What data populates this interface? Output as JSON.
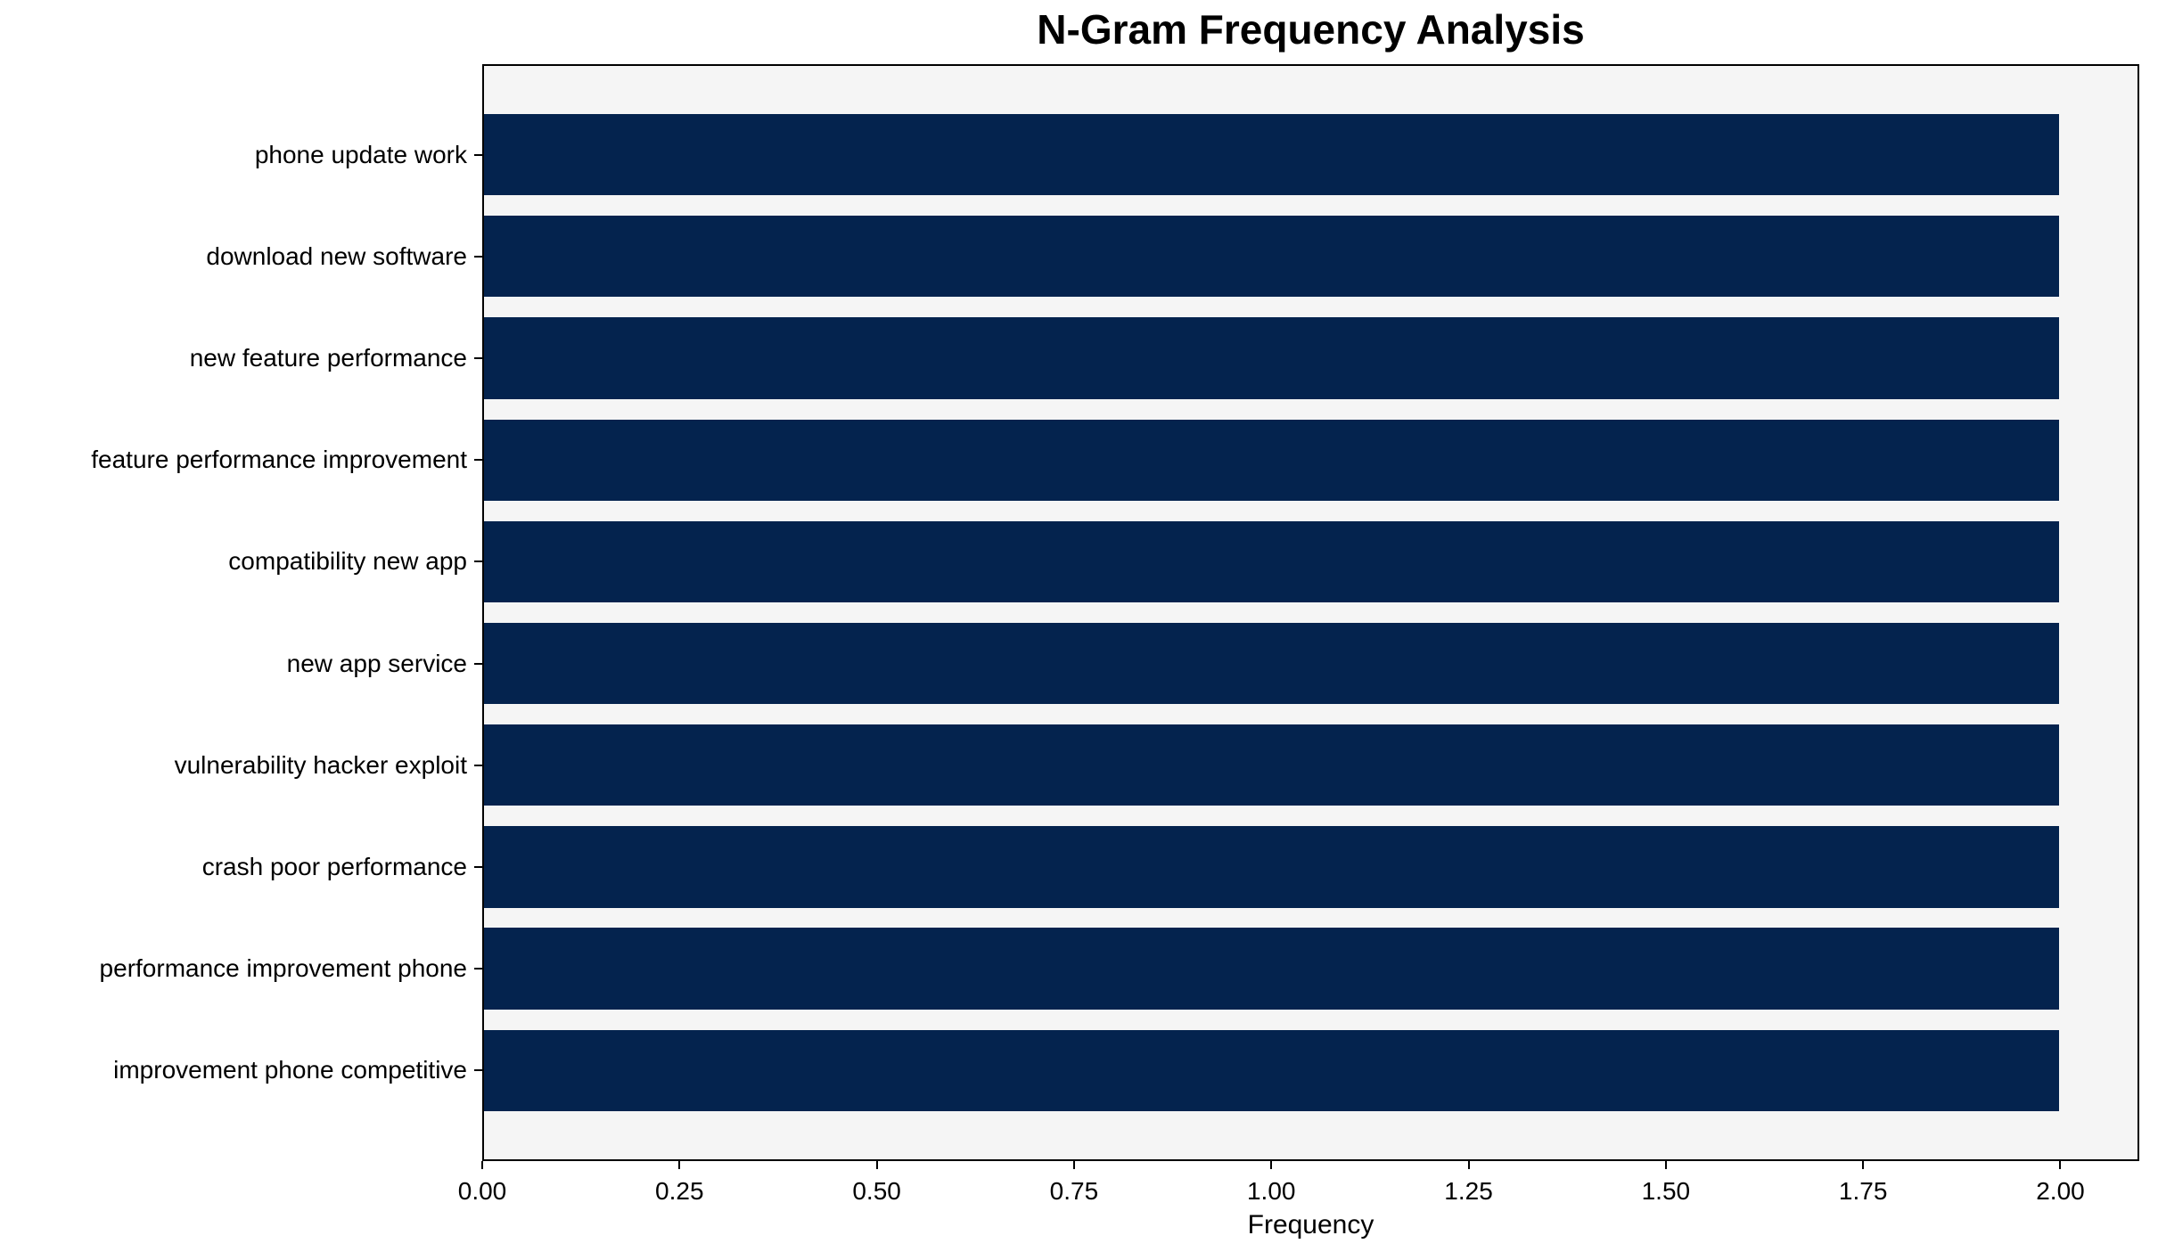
{
  "chart_data": {
    "type": "bar",
    "orientation": "horizontal",
    "title": "N-Gram Frequency Analysis",
    "xlabel": "Frequency",
    "ylabel": "",
    "categories": [
      "phone update work",
      "download new software",
      "new feature performance",
      "feature performance improvement",
      "compatibility new app",
      "new app service",
      "vulnerability hacker exploit",
      "crash poor performance",
      "performance improvement phone",
      "improvement phone competitive"
    ],
    "values": [
      2,
      2,
      2,
      2,
      2,
      2,
      2,
      2,
      2,
      2
    ],
    "xlim": [
      0,
      2.1
    ],
    "xtick_values": [
      0,
      0.25,
      0.5,
      0.75,
      1.0,
      1.25,
      1.5,
      1.75,
      2.0
    ],
    "xtick_labels": [
      "0.00",
      "0.25",
      "0.50",
      "0.75",
      "1.00",
      "1.25",
      "1.50",
      "1.75",
      "2.00"
    ],
    "grid": false,
    "legend": "none",
    "colors": {
      "bar": "#04234e",
      "plot_background": "#f5f5f5",
      "figure_background": "#ffffff",
      "spine": "#000000",
      "text": "#000000"
    }
  }
}
